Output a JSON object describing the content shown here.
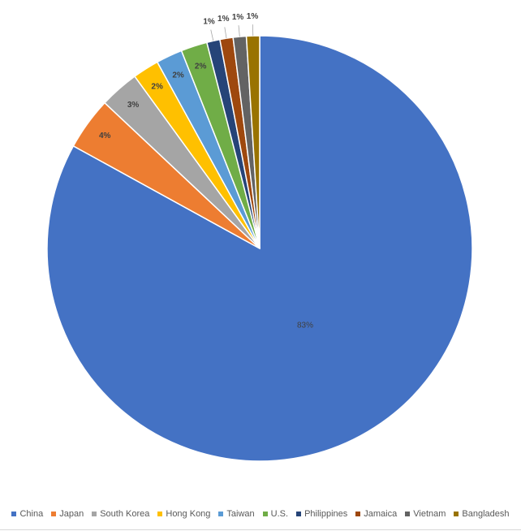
{
  "chart_data": {
    "type": "pie",
    "categories": [
      "China",
      "Japan",
      "South Korea",
      "Hong Kong",
      "Taiwan",
      "U.S.",
      "Philippines",
      "Jamaica",
      "Vietnam",
      "Bangladesh"
    ],
    "values": [
      83,
      4,
      3,
      2,
      2,
      2,
      1,
      1,
      1,
      1
    ],
    "value_labels": [
      "83%",
      "4%",
      "3%",
      "2%",
      "2%",
      "2%",
      "1%",
      "1%",
      "1%",
      "1%"
    ],
    "colors": [
      "#4472c4",
      "#ed7d31",
      "#a5a5a5",
      "#ffc000",
      "#5b9bd5",
      "#70ad47",
      "#264478",
      "#9e480e",
      "#636363",
      "#997300"
    ],
    "legend": "bottom"
  }
}
